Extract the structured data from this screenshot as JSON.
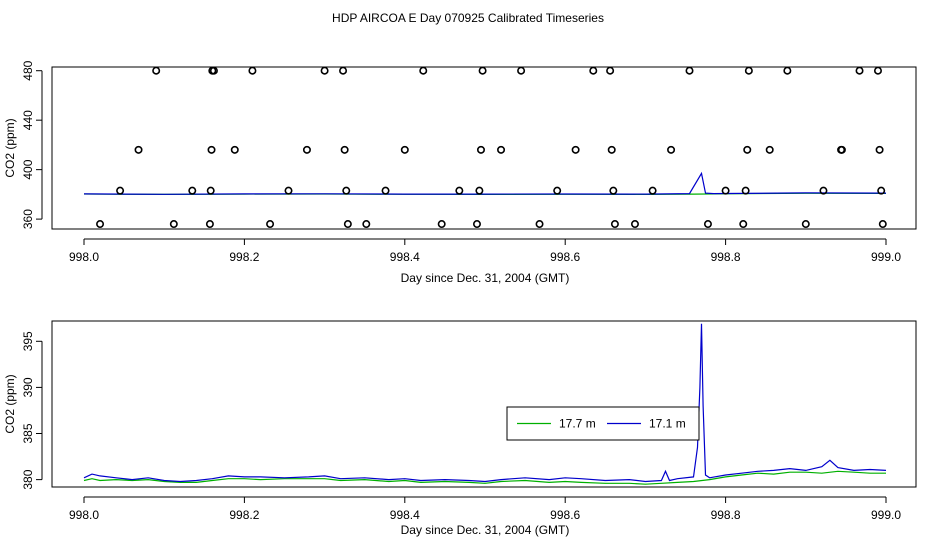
{
  "page_title": "HDP AIRCOA E  Day 070925  Calibrated Timeseries",
  "chart_data": [
    {
      "type": "scatter",
      "xlabel": "Day since Dec. 31, 2004 (GMT)",
      "ylabel": "CO2 (ppm)",
      "xlim": [
        998.0,
        999.0
      ],
      "ylim": [
        352,
        483
      ],
      "xticks": [
        "998.0",
        "998.2",
        "998.4",
        "998.6",
        "998.8",
        "999.0"
      ],
      "yticks": [
        "360",
        "400",
        "440",
        "480"
      ],
      "points_x": [
        998.02,
        998.045,
        998.068,
        998.09,
        998.112,
        998.135,
        998.157,
        998.158,
        998.159,
        998.16,
        998.162,
        998.188,
        998.21,
        998.232,
        998.255,
        998.278,
        998.3,
        998.323,
        998.325,
        998.327,
        998.329,
        998.352,
        998.376,
        998.4,
        998.423,
        998.446,
        998.468,
        998.49,
        998.493,
        998.495,
        998.497,
        998.52,
        998.545,
        998.568,
        998.59,
        998.613,
        998.635,
        998.656,
        998.658,
        998.66,
        998.662,
        998.687,
        998.709,
        998.732,
        998.755,
        998.778,
        998.8,
        998.822,
        998.825,
        998.827,
        998.829,
        998.855,
        998.877,
        998.9,
        998.922,
        998.944,
        998.945,
        998.967,
        998.99,
        998.992,
        998.994,
        998.996
      ],
      "points_y": [
        356,
        383,
        416,
        480,
        356,
        383,
        356,
        383,
        416,
        480,
        480,
        416,
        480,
        356,
        383,
        416,
        480,
        480,
        416,
        383,
        356,
        356,
        383,
        416,
        480,
        356,
        383,
        356,
        383,
        416,
        480,
        416,
        480,
        356,
        383,
        416,
        480,
        480,
        416,
        383,
        356,
        356,
        383,
        416,
        480,
        356,
        383,
        356,
        383,
        416,
        480,
        416,
        480,
        356,
        383,
        416,
        416,
        480,
        480,
        416,
        383,
        356
      ],
      "lines": [
        {
          "name": "17.7 m",
          "color": "#00b000",
          "x": [
            998.0,
            998.1,
            998.2,
            998.3,
            998.4,
            998.5,
            998.6,
            998.7,
            998.76,
            998.8,
            998.9,
            999.0
          ],
          "y": [
            380.3,
            380.0,
            380.2,
            380.3,
            380.1,
            380.0,
            380.1,
            380.0,
            380.2,
            380.5,
            380.9,
            380.8
          ]
        },
        {
          "name": "17.1 m",
          "color": "#0000cc",
          "x": [
            998.0,
            998.1,
            998.2,
            998.3,
            998.4,
            998.5,
            998.6,
            998.7,
            998.755,
            998.77,
            998.775,
            998.785,
            998.8,
            998.9,
            999.0
          ],
          "y": [
            380.4,
            380.1,
            380.4,
            380.5,
            380.2,
            380.2,
            380.3,
            380.2,
            380.6,
            397.0,
            381.0,
            380.6,
            380.7,
            381.2,
            381.0
          ]
        }
      ]
    },
    {
      "type": "line",
      "xlabel": "Day since Dec. 31, 2004 (GMT)",
      "ylabel": "CO2 (ppm)",
      "xlim": [
        998.0,
        999.0
      ],
      "ylim": [
        379.2,
        397.2
      ],
      "xticks": [
        "998.0",
        "998.2",
        "998.4",
        "998.6",
        "998.8",
        "999.0"
      ],
      "yticks": [
        "380",
        "385",
        "390",
        "395"
      ],
      "legend": {
        "placement": "center-right",
        "entries": [
          "17.7 m",
          "17.1 m"
        ]
      },
      "series": [
        {
          "name": "17.7 m",
          "color": "#00b000",
          "x": [
            998.0,
            998.01,
            998.02,
            998.04,
            998.06,
            998.08,
            998.1,
            998.12,
            998.14,
            998.16,
            998.18,
            998.2,
            998.22,
            998.25,
            998.28,
            998.3,
            998.32,
            998.35,
            998.38,
            998.4,
            998.42,
            998.45,
            998.48,
            998.5,
            998.52,
            998.55,
            998.58,
            998.6,
            998.62,
            998.65,
            998.68,
            998.7,
            998.72,
            998.74,
            998.76,
            998.78,
            998.8,
            998.82,
            998.84,
            998.86,
            998.88,
            998.9,
            998.92,
            998.94,
            998.96,
            998.98,
            999.0
          ],
          "y": [
            379.9,
            380.1,
            379.9,
            380.0,
            379.9,
            380.0,
            379.8,
            379.7,
            379.7,
            379.9,
            380.1,
            380.1,
            380.0,
            380.1,
            380.1,
            380.1,
            379.9,
            380.0,
            379.8,
            379.9,
            379.7,
            379.8,
            379.7,
            379.6,
            379.8,
            379.9,
            379.7,
            379.8,
            379.7,
            379.6,
            379.6,
            379.5,
            379.6,
            379.7,
            379.8,
            380.0,
            380.3,
            380.5,
            380.7,
            380.6,
            380.8,
            380.8,
            380.7,
            380.9,
            380.8,
            380.7,
            380.7
          ]
        },
        {
          "name": "17.1 m",
          "color": "#0000cc",
          "x": [
            998.0,
            998.01,
            998.02,
            998.04,
            998.06,
            998.08,
            998.1,
            998.12,
            998.14,
            998.16,
            998.18,
            998.2,
            998.22,
            998.25,
            998.28,
            998.3,
            998.32,
            998.35,
            998.38,
            998.4,
            998.42,
            998.45,
            998.48,
            998.5,
            998.52,
            998.55,
            998.58,
            998.6,
            998.62,
            998.65,
            998.68,
            998.7,
            998.72,
            998.725,
            998.73,
            998.74,
            998.76,
            998.765,
            998.768,
            998.77,
            998.772,
            998.775,
            998.78,
            998.8,
            998.82,
            998.84,
            998.86,
            998.88,
            998.9,
            998.92,
            998.93,
            998.94,
            998.96,
            998.98,
            999.0
          ],
          "y": [
            380.2,
            380.6,
            380.4,
            380.2,
            380.0,
            380.2,
            379.9,
            379.8,
            379.9,
            380.1,
            380.4,
            380.3,
            380.3,
            380.2,
            380.3,
            380.4,
            380.1,
            380.2,
            380.0,
            380.1,
            379.9,
            380.0,
            379.9,
            379.8,
            380.0,
            380.2,
            380.0,
            380.2,
            380.1,
            379.9,
            380.0,
            379.8,
            379.9,
            380.9,
            379.9,
            380.1,
            380.3,
            383.5,
            390.0,
            396.9,
            388.0,
            380.5,
            380.2,
            380.5,
            380.7,
            380.9,
            381.0,
            381.2,
            381.0,
            381.4,
            382.1,
            381.3,
            381.0,
            381.1,
            381.0
          ]
        }
      ]
    }
  ]
}
